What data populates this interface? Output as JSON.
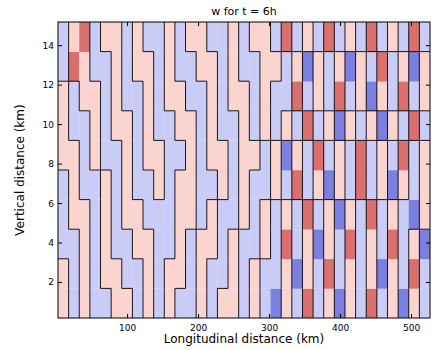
{
  "chart_data": {
    "type": "contour",
    "title": "w for t = 6h",
    "x_label": "Longitudinal distance (km)",
    "y_label": "Vertical distance (km)",
    "xlim": [
      2,
      526
    ],
    "ylim": [
      0.2,
      15.2
    ],
    "xticks": [
      100,
      200,
      300,
      400,
      500
    ],
    "yticks": [
      2,
      4,
      6,
      8,
      10,
      12,
      14
    ],
    "levels": [
      -1,
      0,
      1
    ],
    "level_colors": [
      "#7b7fe0",
      "#c9ccf6",
      "#fbd3cf",
      "#d9706d"
    ],
    "cells": [
      [
        0.5,
        -0.5,
        0.5,
        -0.5,
        -0.5,
        0.5,
        0.5,
        -0.5,
        0.5,
        -0.5,
        0.5,
        -0.5,
        -0.5,
        0.5,
        -0.5,
        0.5,
        0.5,
        -0.5,
        0.5,
        -0.5,
        -1.2,
        0.5,
        -0.5,
        1.2,
        -0.5,
        0.5,
        -1.2,
        0.5,
        -0.5,
        1.2,
        -0.5,
        0.5,
        -1.2,
        0.5,
        -0.5
      ],
      [
        0.5,
        -0.5,
        0.5,
        -0.5,
        0.5,
        0.5,
        -0.5,
        -0.5,
        0.5,
        -0.5,
        0.5,
        0.5,
        -0.5,
        0.5,
        -0.5,
        -0.5,
        0.5,
        -0.5,
        0.5,
        -0.5,
        -0.5,
        0.5,
        -1.2,
        0.5,
        -0.5,
        1.2,
        -0.5,
        0.5,
        -0.5,
        0.5,
        -1.2,
        0.5,
        -0.5,
        1.2,
        -0.5
      ],
      [
        -0.5,
        -0.5,
        0.5,
        -0.5,
        0.5,
        -0.5,
        -0.5,
        0.5,
        0.5,
        -0.5,
        -0.5,
        0.5,
        -0.5,
        0.5,
        0.5,
        -0.5,
        0.5,
        -0.5,
        -0.5,
        0.5,
        -0.5,
        1.2,
        -0.5,
        0.5,
        -1.2,
        0.5,
        -0.5,
        1.2,
        -0.5,
        0.5,
        -0.5,
        1.2,
        -0.5,
        0.5,
        -1.2
      ],
      [
        -0.5,
        0.5,
        0.5,
        -0.5,
        0.5,
        -0.5,
        0.5,
        0.5,
        -0.5,
        -0.5,
        -0.5,
        0.5,
        0.5,
        -0.5,
        0.5,
        -0.5,
        -0.5,
        0.5,
        -0.5,
        0.5,
        -0.5,
        0.5,
        -0.5,
        1.2,
        -0.5,
        0.5,
        -1.2,
        0.5,
        -0.5,
        1.2,
        -0.5,
        0.5,
        -0.5,
        -1.2,
        0.5
      ],
      [
        -0.5,
        0.5,
        -0.5,
        -0.5,
        0.5,
        -0.5,
        0.5,
        -0.5,
        -0.5,
        0.5,
        -0.5,
        0.5,
        0.5,
        -0.5,
        -0.5,
        0.5,
        -0.5,
        0.5,
        -0.5,
        -0.5,
        0.5,
        -0.5,
        1.2,
        -0.5,
        0.5,
        -1.2,
        0.5,
        -0.5,
        1.2,
        -0.5,
        0.5,
        -1.2,
        0.5,
        -0.5,
        0.5
      ],
      [
        0.5,
        0.5,
        -0.5,
        0.5,
        -0.5,
        -0.5,
        0.5,
        -0.5,
        0.5,
        0.5,
        -0.5,
        -0.5,
        0.5,
        -0.5,
        0.5,
        0.5,
        -0.5,
        0.5,
        0.5,
        -0.5,
        0.5,
        -1.2,
        0.5,
        -0.5,
        1.2,
        -0.5,
        0.5,
        -0.5,
        1.2,
        -0.5,
        0.5,
        -0.5,
        1.2,
        -0.5,
        0.5
      ],
      [
        0.5,
        -0.5,
        -0.5,
        0.5,
        -0.5,
        0.5,
        0.5,
        -0.5,
        0.5,
        -0.5,
        -0.5,
        0.5,
        0.5,
        -0.5,
        0.5,
        -0.5,
        -0.5,
        0.5,
        -0.5,
        0.5,
        -0.5,
        0.5,
        -0.5,
        1.2,
        -0.5,
        0.5,
        -1.2,
        0.5,
        -0.5,
        0.5,
        -1.2,
        0.5,
        -0.5,
        1.2,
        -0.5
      ],
      [
        0.5,
        -0.5,
        0.5,
        0.5,
        -0.5,
        0.5,
        -0.5,
        -0.5,
        0.5,
        -0.5,
        0.5,
        0.5,
        -0.5,
        -0.5,
        0.5,
        -0.5,
        0.5,
        0.5,
        -0.5,
        0.5,
        -0.5,
        -0.5,
        1.2,
        -0.5,
        0.5,
        -0.5,
        1.2,
        -0.5,
        0.5,
        -1.2,
        0.5,
        -0.5,
        1.2,
        -0.5,
        0.5
      ],
      [
        -0.5,
        1.2,
        0.5,
        -0.5,
        -0.5,
        0.5,
        -0.5,
        0.5,
        0.5,
        -0.5,
        0.5,
        -0.5,
        -0.5,
        0.5,
        0.5,
        -0.5,
        0.5,
        -0.5,
        -0.5,
        0.5,
        0.5,
        -0.5,
        0.5,
        -1.2,
        0.5,
        -0.5,
        0.5,
        -1.2,
        0.5,
        -0.5,
        1.2,
        -0.5,
        0.5,
        -1.2,
        0.5
      ],
      [
        -0.5,
        0.5,
        1.2,
        -0.5,
        0.5,
        0.5,
        -0.5,
        0.5,
        -0.5,
        -0.5,
        0.5,
        -0.5,
        0.5,
        0.5,
        -0.5,
        -0.5,
        0.5,
        -0.5,
        0.5,
        0.5,
        -0.5,
        1.2,
        -0.5,
        0.5,
        -0.5,
        1.2,
        -0.5,
        0.5,
        -0.5,
        1.2,
        -0.5,
        0.5,
        -0.5,
        1.2,
        -0.5
      ]
    ]
  }
}
